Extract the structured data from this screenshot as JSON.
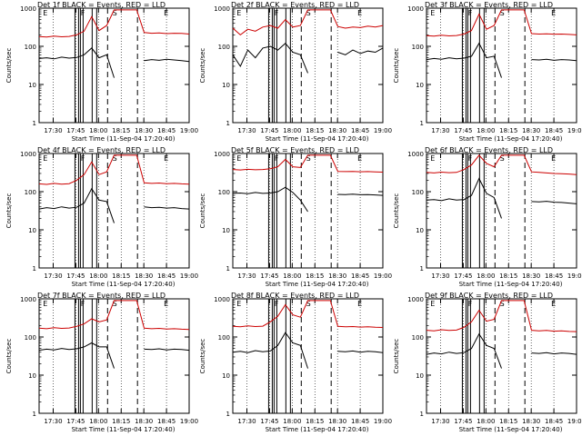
{
  "chart_data": [
    {
      "type": "line",
      "title": "Det 1f BLACK = Events, RED = LLD",
      "xlabel": "Start Time (11-Sep-04 17:20:40)",
      "ylabel": "Counts/sec",
      "x_ticks": [
        "17:30",
        "17:45",
        "18:00",
        "18:15",
        "18:30",
        "18:45",
        "19:00"
      ],
      "y_ticks": [
        "1",
        "10",
        "100",
        "1000"
      ],
      "yscale": "log",
      "ylim": [
        1,
        1000
      ],
      "markers": [
        {
          "label": "E",
          "time": "17:22"
        },
        {
          "label": "F",
          "time": "17:47"
        },
        {
          "label": "S",
          "time": "18:08"
        },
        {
          "label": "E",
          "time": "18:42"
        }
      ],
      "series": [
        {
          "name": "Events",
          "color": "#000000",
          "values": [
            48,
            50,
            47,
            52,
            49,
            51,
            60,
            90,
            50,
            60,
            15,
            null,
            null,
            null,
            42,
            45,
            43,
            46,
            44,
            42,
            40
          ]
        },
        {
          "name": "LLD",
          "color": "#cc0000",
          "values": [
            180,
            175,
            185,
            178,
            182,
            200,
            250,
            600,
            260,
            350,
            900,
            900,
            900,
            900,
            230,
            220,
            225,
            215,
            220,
            218,
            210
          ]
        }
      ]
    },
    {
      "type": "line",
      "title": "Det 2f BLACK = Events, RED = LLD",
      "xlabel": "Start Time (11-Sep-04 17:20:40)",
      "ylabel": "Counts/sec",
      "x_ticks": [
        "17:30",
        "17:45",
        "18:00",
        "18:15",
        "18:30",
        "18:45",
        "19:00"
      ],
      "y_ticks": [
        "1",
        "10",
        "100",
        "1000"
      ],
      "yscale": "log",
      "ylim": [
        1,
        1000
      ],
      "markers": [
        {
          "label": "E",
          "time": "17:22"
        },
        {
          "label": "F",
          "time": "17:47"
        },
        {
          "label": "S",
          "time": "18:08"
        },
        {
          "label": "E",
          "time": "18:42"
        }
      ],
      "series": [
        {
          "name": "Events",
          "color": "#000000",
          "values": [
            60,
            30,
            80,
            50,
            90,
            100,
            80,
            120,
            70,
            60,
            20,
            null,
            null,
            null,
            70,
            60,
            80,
            65,
            75,
            70,
            90
          ]
        },
        {
          "name": "LLD",
          "color": "#cc0000",
          "values": [
            300,
            200,
            280,
            250,
            320,
            350,
            300,
            500,
            320,
            350,
            900,
            900,
            900,
            900,
            330,
            300,
            320,
            310,
            340,
            320,
            350
          ]
        }
      ]
    },
    {
      "type": "line",
      "title": "Det 3f BLACK = Events, RED = LLD",
      "xlabel": "Start Time (11-Sep-04 17:20:40)",
      "ylabel": "Counts/sec",
      "x_ticks": [
        "17:30",
        "17:45",
        "18:00",
        "18:15",
        "18:30",
        "18:45",
        "19:00"
      ],
      "y_ticks": [
        "1",
        "10",
        "100",
        "1000"
      ],
      "yscale": "log",
      "ylim": [
        1,
        1000
      ],
      "markers": [
        {
          "label": "E",
          "time": "17:22"
        },
        {
          "label": "F",
          "time": "17:47"
        },
        {
          "label": "S",
          "time": "18:08"
        },
        {
          "label": "E",
          "time": "18:42"
        }
      ],
      "series": [
        {
          "name": "Events",
          "color": "#000000",
          "values": [
            45,
            48,
            46,
            50,
            47,
            49,
            55,
            120,
            50,
            55,
            15,
            null,
            null,
            null,
            45,
            44,
            46,
            43,
            45,
            44,
            42
          ]
        },
        {
          "name": "LLD",
          "color": "#cc0000",
          "values": [
            190,
            185,
            195,
            188,
            192,
            210,
            260,
            700,
            280,
            350,
            900,
            900,
            900,
            900,
            215,
            210,
            212,
            208,
            210,
            205,
            200
          ]
        }
      ]
    },
    {
      "type": "line",
      "title": "Det 4f BLACK = Events, RED = LLD",
      "xlabel": "Start Time (11-Sep-04 17:20:40)",
      "ylabel": "Counts/sec",
      "x_ticks": [
        "17:30",
        "17:45",
        "18:00",
        "18:15",
        "18:30",
        "18:45",
        "19:00"
      ],
      "y_ticks": [
        "1",
        "10",
        "100",
        "1000"
      ],
      "yscale": "log",
      "ylim": [
        1,
        1000
      ],
      "markers": [
        {
          "label": "E",
          "time": "17:22"
        },
        {
          "label": "F",
          "time": "17:47"
        },
        {
          "label": "S",
          "time": "18:08"
        },
        {
          "label": "E",
          "time": "18:42"
        }
      ],
      "series": [
        {
          "name": "Events",
          "color": "#000000",
          "values": [
            35,
            38,
            36,
            40,
            37,
            39,
            50,
            120,
            60,
            55,
            15,
            null,
            null,
            null,
            40,
            38,
            39,
            37,
            38,
            36,
            35
          ]
        },
        {
          "name": "LLD",
          "color": "#cc0000",
          "values": [
            160,
            155,
            165,
            158,
            162,
            200,
            280,
            600,
            280,
            330,
            900,
            900,
            900,
            900,
            170,
            165,
            168,
            162,
            165,
            160,
            158
          ]
        }
      ]
    },
    {
      "type": "line",
      "title": "Det 5f BLACK = Events, RED = LLD",
      "xlabel": "Start Time (11-Sep-04 17:20:40)",
      "ylabel": "Counts/sec",
      "x_ticks": [
        "17:30",
        "17:45",
        "18:00",
        "18:15",
        "18:30",
        "18:45",
        "19:00"
      ],
      "y_ticks": [
        "1",
        "10",
        "100",
        "1000"
      ],
      "yscale": "log",
      "ylim": [
        1,
        1000
      ],
      "markers": [
        {
          "label": "E",
          "time": "17:22"
        },
        {
          "label": "F",
          "time": "17:47"
        },
        {
          "label": "S",
          "time": "18:08"
        },
        {
          "label": "E",
          "time": "18:42"
        }
      ],
      "series": [
        {
          "name": "Events",
          "color": "#000000",
          "values": [
            90,
            92,
            88,
            95,
            90,
            92,
            100,
            130,
            95,
            60,
            30,
            null,
            null,
            null,
            85,
            84,
            86,
            83,
            84,
            82,
            80
          ]
        },
        {
          "name": "LLD",
          "color": "#cc0000",
          "values": [
            380,
            370,
            385,
            375,
            380,
            400,
            450,
            700,
            450,
            430,
            900,
            900,
            900,
            900,
            340,
            335,
            338,
            332,
            335,
            330,
            325
          ]
        }
      ]
    },
    {
      "type": "line",
      "title": "Det 6f BLACK = Events, RED = LLD",
      "xlabel": "Start Time (11-Sep-04 17:20:40)",
      "ylabel": "Counts/sec",
      "x_ticks": [
        "17:30",
        "17:45",
        "18:00",
        "18:15",
        "18:30",
        "18:45",
        "19:00"
      ],
      "y_ticks": [
        "1",
        "10",
        "100",
        "1000"
      ],
      "yscale": "log",
      "ylim": [
        1,
        1000
      ],
      "markers": [
        {
          "label": "E",
          "time": "17:22"
        },
        {
          "label": "F",
          "time": "17:47"
        },
        {
          "label": "S",
          "time": "18:08"
        },
        {
          "label": "E",
          "time": "18:42"
        }
      ],
      "series": [
        {
          "name": "Events",
          "color": "#000000",
          "values": [
            60,
            62,
            58,
            65,
            60,
            62,
            80,
            220,
            90,
            70,
            20,
            null,
            null,
            null,
            55,
            54,
            56,
            53,
            52,
            50,
            48
          ]
        },
        {
          "name": "LLD",
          "color": "#cc0000",
          "values": [
            320,
            310,
            325,
            315,
            320,
            380,
            500,
            900,
            550,
            450,
            900,
            900,
            900,
            900,
            330,
            320,
            310,
            300,
            295,
            290,
            280
          ]
        }
      ]
    },
    {
      "type": "line",
      "title": "Det 7f BLACK = Events, RED = LLD",
      "xlabel": "Start Time (11-Sep-04 17:20:40)",
      "ylabel": "Counts/sec",
      "x_ticks": [
        "17:30",
        "17:45",
        "18:00",
        "18:15",
        "18:30",
        "18:45",
        "19:00"
      ],
      "y_ticks": [
        "1",
        "10",
        "100",
        "1000"
      ],
      "yscale": "log",
      "ylim": [
        1,
        1000
      ],
      "markers": [
        {
          "label": "E",
          "time": "17:22"
        },
        {
          "label": "F",
          "time": "17:47"
        },
        {
          "label": "S",
          "time": "18:08"
        },
        {
          "label": "E",
          "time": "18:42"
        }
      ],
      "series": [
        {
          "name": "Events",
          "color": "#000000",
          "values": [
            45,
            48,
            46,
            50,
            47,
            49,
            55,
            70,
            55,
            55,
            15,
            null,
            null,
            null,
            48,
            47,
            49,
            46,
            48,
            47,
            45
          ]
        },
        {
          "name": "LLD",
          "color": "#cc0000",
          "values": [
            170,
            165,
            175,
            168,
            172,
            190,
            220,
            300,
            250,
            280,
            900,
            900,
            900,
            900,
            170,
            165,
            168,
            162,
            165,
            160,
            158
          ]
        }
      ]
    },
    {
      "type": "line",
      "title": "Det 8f BLACK = Events, RED = LLD",
      "xlabel": "Start Time (11-Sep-04 17:20:40)",
      "ylabel": "Counts/sec",
      "x_ticks": [
        "17:30",
        "17:45",
        "18:00",
        "18:15",
        "18:30",
        "18:45",
        "19:00"
      ],
      "y_ticks": [
        "1",
        "10",
        "100",
        "1000"
      ],
      "yscale": "log",
      "ylim": [
        1,
        1000
      ],
      "markers": [
        {
          "label": "E",
          "time": "17:22"
        },
        {
          "label": "F",
          "time": "17:47"
        },
        {
          "label": "S",
          "time": "18:08"
        },
        {
          "label": "E",
          "time": "18:42"
        }
      ],
      "series": [
        {
          "name": "Events",
          "color": "#000000",
          "values": [
            40,
            42,
            39,
            44,
            41,
            43,
            60,
            130,
            70,
            60,
            15,
            null,
            null,
            null,
            42,
            41,
            43,
            40,
            42,
            41,
            39
          ]
        },
        {
          "name": "LLD",
          "color": "#cc0000",
          "values": [
            190,
            185,
            195,
            188,
            192,
            250,
            350,
            700,
            380,
            330,
            900,
            900,
            900,
            900,
            190,
            185,
            188,
            182,
            185,
            180,
            178
          ]
        }
      ]
    },
    {
      "type": "line",
      "title": "Det 9f BLACK = Events, RED = LLD",
      "xlabel": "Start Time (11-Sep-04 17:20:40)",
      "ylabel": "Counts/sec",
      "x_ticks": [
        "17:30",
        "17:45",
        "18:00",
        "18:15",
        "18:30",
        "18:45",
        "19:00"
      ],
      "y_ticks": [
        "1",
        "10",
        "100",
        "1000"
      ],
      "yscale": "log",
      "ylim": [
        1,
        1000
      ],
      "markers": [
        {
          "label": "E",
          "time": "17:22"
        },
        {
          "label": "F",
          "time": "17:47"
        },
        {
          "label": "S",
          "time": "18:08"
        },
        {
          "label": "E",
          "time": "18:42"
        }
      ],
      "series": [
        {
          "name": "Events",
          "color": "#000000",
          "values": [
            35,
            38,
            36,
            40,
            37,
            39,
            50,
            120,
            60,
            50,
            15,
            null,
            null,
            null,
            38,
            37,
            39,
            36,
            38,
            37,
            35
          ]
        },
        {
          "name": "LLD",
          "color": "#cc0000",
          "values": [
            150,
            145,
            155,
            148,
            152,
            180,
            250,
            500,
            260,
            290,
            900,
            900,
            900,
            900,
            150,
            145,
            148,
            142,
            145,
            140,
            138
          ]
        }
      ]
    }
  ]
}
